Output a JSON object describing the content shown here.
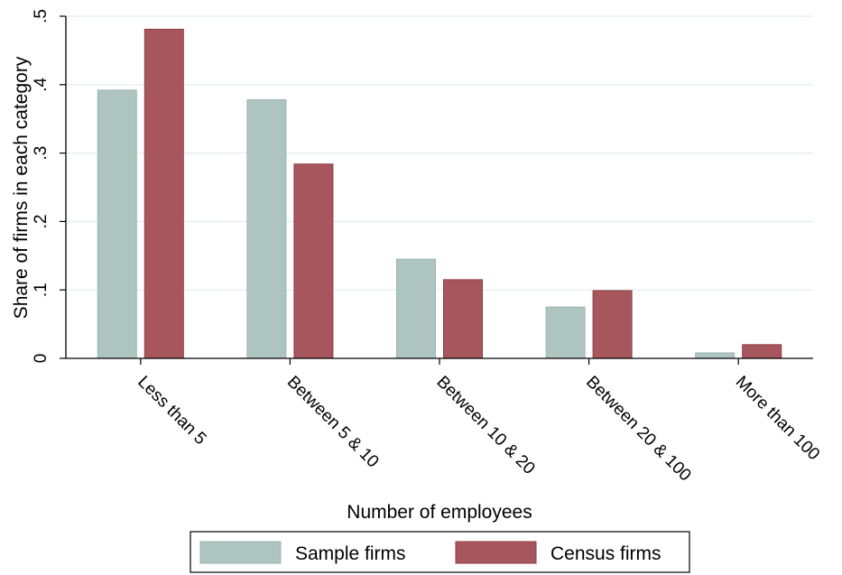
{
  "chart_data": {
    "type": "bar",
    "categories": [
      "Less than 5",
      "Between 5 & 10",
      "Between 10 & 20",
      "Between 20 & 100",
      "More than 100"
    ],
    "series": [
      {
        "name": "Sample firms",
        "values": [
          0.392,
          0.378,
          0.145,
          0.075,
          0.008
        ],
        "color": "#aec4c0"
      },
      {
        "name": "Census firms",
        "values": [
          0.481,
          0.284,
          0.115,
          0.099,
          0.02
        ],
        "color": "#a8565e"
      }
    ],
    "title": "",
    "xlabel": "Number of employees",
    "ylabel": "Share of firms in each category",
    "ylim": [
      0,
      0.5
    ],
    "yticks": [
      0,
      0.1,
      0.2,
      0.3,
      0.4,
      0.5
    ],
    "ytick_labels": [
      "0",
      ".1",
      ".2",
      ".3",
      ".4",
      ".5"
    ],
    "grid": true,
    "legend_position": "bottom"
  }
}
